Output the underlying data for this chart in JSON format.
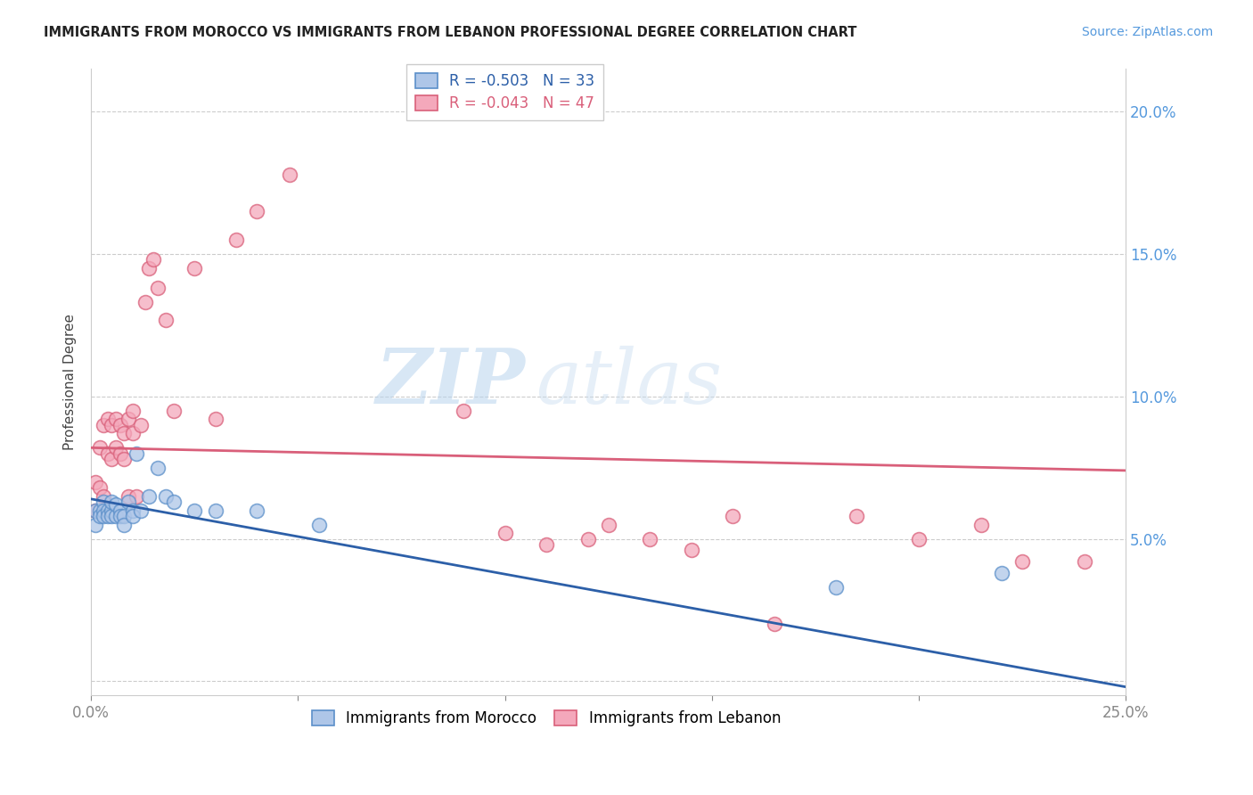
{
  "title": "IMMIGRANTS FROM MOROCCO VS IMMIGRANTS FROM LEBANON PROFESSIONAL DEGREE CORRELATION CHART",
  "source": "Source: ZipAtlas.com",
  "ylabel": "Professional Degree",
  "xlim": [
    0.0,
    0.25
  ],
  "ylim": [
    -0.005,
    0.215
  ],
  "morocco_color": "#aec6e8",
  "lebanon_color": "#f4a8bb",
  "morocco_edge": "#5b8fc9",
  "lebanon_edge": "#d9607a",
  "trend_morocco_color": "#2c5fa8",
  "trend_lebanon_color": "#d95f7a",
  "legend_r_morocco": "R = -0.503",
  "legend_n_morocco": "N = 33",
  "legend_r_lebanon": "R = -0.043",
  "legend_n_lebanon": "N = 47",
  "watermark_zip": "ZIP",
  "watermark_atlas": "atlas",
  "background_color": "#ffffff",
  "grid_color": "#cccccc",
  "morocco_x": [
    0.001,
    0.001,
    0.002,
    0.002,
    0.003,
    0.003,
    0.003,
    0.004,
    0.004,
    0.005,
    0.005,
    0.005,
    0.006,
    0.006,
    0.007,
    0.007,
    0.008,
    0.008,
    0.009,
    0.01,
    0.01,
    0.011,
    0.012,
    0.014,
    0.016,
    0.018,
    0.02,
    0.025,
    0.03,
    0.04,
    0.055,
    0.18,
    0.22
  ],
  "morocco_y": [
    0.06,
    0.055,
    0.06,
    0.058,
    0.063,
    0.06,
    0.058,
    0.06,
    0.058,
    0.06,
    0.063,
    0.058,
    0.058,
    0.062,
    0.06,
    0.058,
    0.058,
    0.055,
    0.063,
    0.06,
    0.058,
    0.08,
    0.06,
    0.065,
    0.075,
    0.065,
    0.063,
    0.06,
    0.06,
    0.06,
    0.055,
    0.033,
    0.038
  ],
  "lebanon_x": [
    0.001,
    0.001,
    0.002,
    0.002,
    0.003,
    0.003,
    0.004,
    0.004,
    0.005,
    0.005,
    0.006,
    0.006,
    0.007,
    0.007,
    0.008,
    0.008,
    0.009,
    0.009,
    0.01,
    0.01,
    0.011,
    0.012,
    0.013,
    0.014,
    0.015,
    0.016,
    0.018,
    0.02,
    0.025,
    0.03,
    0.035,
    0.04,
    0.048,
    0.09,
    0.1,
    0.11,
    0.12,
    0.125,
    0.135,
    0.145,
    0.155,
    0.165,
    0.185,
    0.2,
    0.215,
    0.225,
    0.24
  ],
  "lebanon_y": [
    0.06,
    0.07,
    0.068,
    0.082,
    0.065,
    0.09,
    0.08,
    0.092,
    0.078,
    0.09,
    0.082,
    0.092,
    0.08,
    0.09,
    0.078,
    0.087,
    0.065,
    0.092,
    0.087,
    0.095,
    0.065,
    0.09,
    0.133,
    0.145,
    0.148,
    0.138,
    0.127,
    0.095,
    0.145,
    0.092,
    0.155,
    0.165,
    0.178,
    0.095,
    0.052,
    0.048,
    0.05,
    0.055,
    0.05,
    0.046,
    0.058,
    0.02,
    0.058,
    0.05,
    0.055,
    0.042,
    0.042
  ],
  "trend_lebanon_start_x": 0.0,
  "trend_lebanon_start_y": 0.082,
  "trend_lebanon_end_x": 0.25,
  "trend_lebanon_end_y": 0.074,
  "trend_morocco_start_x": 0.0,
  "trend_morocco_start_y": 0.064,
  "trend_morocco_end_x": 0.25,
  "trend_morocco_end_y": -0.002
}
